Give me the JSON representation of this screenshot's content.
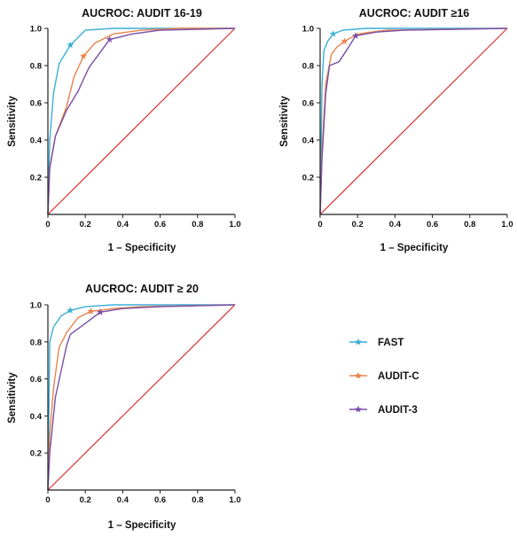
{
  "colors": {
    "FAST": "#3aaed8",
    "AUDIT-C": "#e8834a",
    "AUDIT-3": "#7a4fa8",
    "reference": "#d9302c",
    "axis": "#222222"
  },
  "legend": {
    "placement": "bottom-right",
    "items": [
      {
        "label": "FAST",
        "color": "#3aaed8",
        "marker": "star"
      },
      {
        "label": "AUDIT-C",
        "color": "#e8834a",
        "marker": "star"
      },
      {
        "label": "AUDIT-3",
        "color": "#7a4fa8",
        "marker": "star"
      }
    ]
  },
  "chart_data": [
    {
      "type": "line",
      "title": "AUCROC: AUDIT 16-19",
      "xlabel": "1 – Specificity",
      "ylabel": "Sensitivity",
      "xlim": [
        0,
        1
      ],
      "ylim": [
        0,
        1
      ],
      "xticks": [
        "0",
        "0.2",
        "0.4",
        "0.6",
        "0.8",
        "1.0"
      ],
      "yticks": [
        "0.2",
        "0.4",
        "0.6",
        "0.8",
        "1.0"
      ],
      "grid": false,
      "series": [
        {
          "name": "FAST",
          "x": [
            0,
            0.01,
            0.03,
            0.06,
            0.12,
            0.2,
            0.35,
            0.6,
            1.0
          ],
          "y": [
            0,
            0.4,
            0.65,
            0.81,
            0.91,
            0.99,
            1.0,
            1.0,
            1.0
          ],
          "star": [
            0.12,
            0.91
          ]
        },
        {
          "name": "AUDIT-C",
          "x": [
            0,
            0.01,
            0.04,
            0.1,
            0.14,
            0.19,
            0.25,
            0.35,
            0.5,
            0.7,
            1.0
          ],
          "y": [
            0,
            0.25,
            0.42,
            0.58,
            0.74,
            0.85,
            0.92,
            0.97,
            0.99,
            1.0,
            1.0
          ],
          "star": [
            0.19,
            0.85
          ]
        },
        {
          "name": "AUDIT-3",
          "x": [
            0,
            0.01,
            0.04,
            0.1,
            0.16,
            0.22,
            0.33,
            0.45,
            0.6,
            1.0
          ],
          "y": [
            0,
            0.25,
            0.42,
            0.56,
            0.66,
            0.79,
            0.94,
            0.97,
            0.99,
            1.0
          ],
          "star": [
            0.33,
            0.94
          ]
        }
      ],
      "reference_line": {
        "x": [
          0,
          1
        ],
        "y": [
          0,
          1
        ]
      }
    },
    {
      "type": "line",
      "title": "AUCROC: AUDIT ≥16",
      "xlabel": "1 – Specificity",
      "ylabel": "Sensitivity",
      "xlim": [
        0,
        1
      ],
      "ylim": [
        0,
        1
      ],
      "xticks": [
        "0",
        "0.2",
        "0.4",
        "0.6",
        "0.8",
        "1.0"
      ],
      "yticks": [
        "0.2",
        "0.4",
        "0.6",
        "0.8",
        "1.0"
      ],
      "grid": false,
      "series": [
        {
          "name": "FAST",
          "x": [
            0,
            0.01,
            0.02,
            0.04,
            0.07,
            0.12,
            0.25,
            1.0
          ],
          "y": [
            0,
            0.7,
            0.88,
            0.93,
            0.97,
            0.99,
            1.0,
            1.0
          ],
          "star": [
            0.07,
            0.97
          ]
        },
        {
          "name": "AUDIT-C",
          "x": [
            0,
            0.01,
            0.03,
            0.06,
            0.09,
            0.13,
            0.2,
            0.35,
            1.0
          ],
          "y": [
            0,
            0.35,
            0.7,
            0.86,
            0.9,
            0.93,
            0.97,
            0.99,
            1.0
          ],
          "star": [
            0.13,
            0.93
          ]
        },
        {
          "name": "AUDIT-3",
          "x": [
            0,
            0.01,
            0.03,
            0.05,
            0.1,
            0.14,
            0.19,
            0.3,
            0.45,
            1.0
          ],
          "y": [
            0,
            0.3,
            0.65,
            0.8,
            0.82,
            0.88,
            0.96,
            0.98,
            0.99,
            1.0
          ],
          "star": [
            0.19,
            0.96
          ]
        }
      ],
      "reference_line": {
        "x": [
          0,
          1
        ],
        "y": [
          0,
          1
        ]
      }
    },
    {
      "type": "line",
      "title": "AUCROC: AUDIT ≥ 20",
      "xlabel": "1 – Specificity",
      "ylabel": "Sensitivity",
      "xlim": [
        0,
        1
      ],
      "ylim": [
        0,
        1
      ],
      "xticks": [
        "0",
        "0.2",
        "0.4",
        "0.6",
        "0.8",
        "1.0"
      ],
      "yticks": [
        "0.2",
        "0.4",
        "0.6",
        "0.8",
        "1.0"
      ],
      "grid": false,
      "series": [
        {
          "name": "FAST",
          "x": [
            0,
            0.01,
            0.03,
            0.07,
            0.12,
            0.2,
            0.35,
            1.0
          ],
          "y": [
            0,
            0.8,
            0.88,
            0.94,
            0.97,
            0.99,
            1.0,
            1.0
          ],
          "star": [
            0.12,
            0.97
          ]
        },
        {
          "name": "AUDIT-C",
          "x": [
            0,
            0.01,
            0.03,
            0.06,
            0.1,
            0.16,
            0.23,
            0.35,
            0.5,
            1.0
          ],
          "y": [
            0,
            0.3,
            0.55,
            0.77,
            0.85,
            0.93,
            0.965,
            0.98,
            0.99,
            1.0
          ],
          "star": [
            0.23,
            0.965
          ]
        },
        {
          "name": "AUDIT-3",
          "x": [
            0,
            0.01,
            0.04,
            0.1,
            0.12,
            0.2,
            0.28,
            0.4,
            0.6,
            1.0
          ],
          "y": [
            0,
            0.2,
            0.5,
            0.78,
            0.84,
            0.9,
            0.96,
            0.98,
            0.99,
            1.0
          ],
          "star": [
            0.28,
            0.96
          ]
        }
      ],
      "reference_line": {
        "x": [
          0,
          1
        ],
        "y": [
          0,
          1
        ]
      }
    }
  ]
}
